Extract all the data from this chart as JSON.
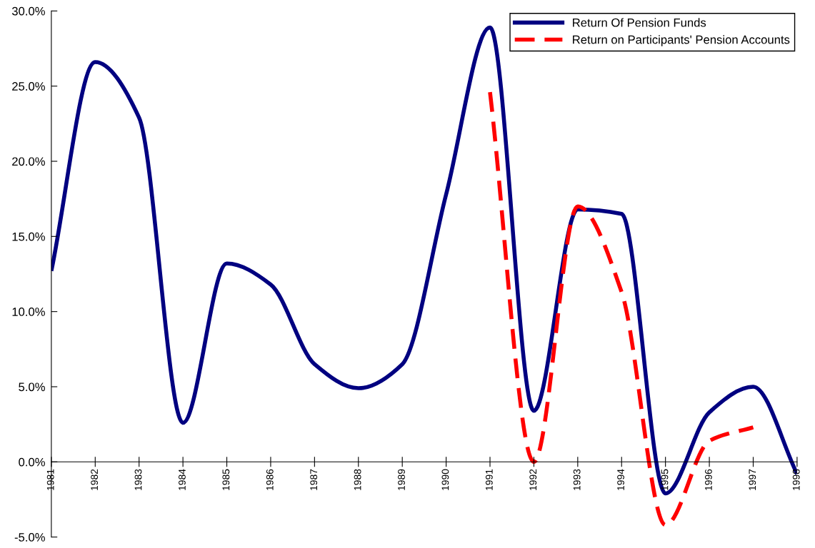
{
  "chart_data": {
    "type": "line",
    "categories": [
      "1981",
      "1982",
      "1983",
      "1984",
      "1985",
      "1986",
      "1987",
      "1988",
      "1989",
      "1990",
      "1991",
      "1992",
      "1993",
      "1994",
      "1995",
      "1996",
      "1997",
      "1998"
    ],
    "series": [
      {
        "name": "Return Of Pension Funds",
        "color": "#000080",
        "line_style": "solid",
        "values": [
          12.7,
          26.6,
          22.9,
          2.6,
          13.2,
          11.8,
          6.5,
          4.9,
          6.5,
          17.8,
          28.9,
          3.4,
          16.8,
          16.5,
          -2.1,
          3.3,
          5.0,
          -0.8
        ]
      },
      {
        "name": "Return on Participants' Pension Accounts",
        "color": "#ff0000",
        "line_style": "dashed",
        "values": [
          null,
          null,
          null,
          null,
          null,
          null,
          null,
          null,
          null,
          null,
          24.6,
          0.0,
          17.0,
          11.3,
          -4.2,
          1.4,
          2.3,
          null
        ]
      }
    ],
    "ylim": [
      -5,
      30
    ],
    "yticks": [
      {
        "value": -5,
        "label": "-5.0%"
      },
      {
        "value": 0,
        "label": "0.0%"
      },
      {
        "value": 5,
        "label": "5.0%"
      },
      {
        "value": 10,
        "label": "10.0%"
      },
      {
        "value": 15,
        "label": "15.0%"
      },
      {
        "value": 20,
        "label": "20.0%"
      },
      {
        "value": 25,
        "label": "25.0%"
      },
      {
        "value": 30,
        "label": "30.0%"
      }
    ],
    "grid": false,
    "legend": "top right",
    "marker": "none"
  }
}
